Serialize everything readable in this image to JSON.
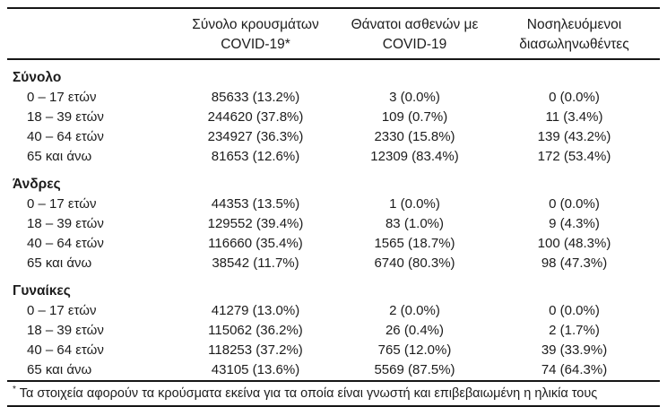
{
  "table": {
    "columns": [
      {
        "line1": "",
        "line2": ""
      },
      {
        "line1": "Σύνολο κρουσμάτων",
        "line2": "COVID-19*"
      },
      {
        "line1": "Θάνατοι ασθενών με",
        "line2": "COVID-19"
      },
      {
        "line1": "Νοσηλευόμενοι",
        "line2": "διασωληνωθέντες"
      }
    ],
    "sections": [
      {
        "header": "Σύνολο",
        "rows": [
          {
            "label": "0 – 17 ετών",
            "cases": "85633 (13.2%)",
            "deaths": "3 (0.0%)",
            "intubated": "0 (0.0%)"
          },
          {
            "label": "18 – 39 ετών",
            "cases": "244620 (37.8%)",
            "deaths": "109 (0.7%)",
            "intubated": "11 (3.4%)"
          },
          {
            "label": "40 – 64 ετών",
            "cases": "234927 (36.3%)",
            "deaths": "2330 (15.8%)",
            "intubated": "139 (43.2%)"
          },
          {
            "label": "65 και άνω",
            "cases": "81653 (12.6%)",
            "deaths": "12309 (83.4%)",
            "intubated": "172 (53.4%)"
          }
        ]
      },
      {
        "header": "Άνδρες",
        "rows": [
          {
            "label": "0 – 17 ετών",
            "cases": "44353 (13.5%)",
            "deaths": "1 (0.0%)",
            "intubated": "0 (0.0%)"
          },
          {
            "label": "18 – 39 ετών",
            "cases": "129552 (39.4%)",
            "deaths": "83 (1.0%)",
            "intubated": "9 (4.3%)"
          },
          {
            "label": "40 – 64 ετών",
            "cases": "116660 (35.4%)",
            "deaths": "1565 (18.7%)",
            "intubated": "100 (48.3%)"
          },
          {
            "label": "65 και άνω",
            "cases": "38542 (11.7%)",
            "deaths": "6740 (80.3%)",
            "intubated": "98 (47.3%)"
          }
        ]
      },
      {
        "header": "Γυναίκες",
        "rows": [
          {
            "label": "0 – 17 ετών",
            "cases": "41279 (13.0%)",
            "deaths": "2 (0.0%)",
            "intubated": "0 (0.0%)"
          },
          {
            "label": "18 – 39 ετών",
            "cases": "115062 (36.2%)",
            "deaths": "26 (0.4%)",
            "intubated": "2 (1.7%)"
          },
          {
            "label": "40 – 64 ετών",
            "cases": "118253 (37.2%)",
            "deaths": "765 (12.0%)",
            "intubated": "39 (33.9%)"
          },
          {
            "label": "65 και άνω",
            "cases": "43105 (13.6%)",
            "deaths": "5569 (87.5%)",
            "intubated": "74 (64.3%)"
          }
        ]
      }
    ],
    "footnote": {
      "marker": "*",
      "text": "Τα στοιχεία αφορούν τα κρούσματα εκείνα για τα οποία είναι γνωστή και επιβεβαιωμένη η ηλικία τους"
    }
  },
  "colors": {
    "text": "#1c1c1c",
    "rule": "#161616",
    "background": "#ffffff"
  }
}
